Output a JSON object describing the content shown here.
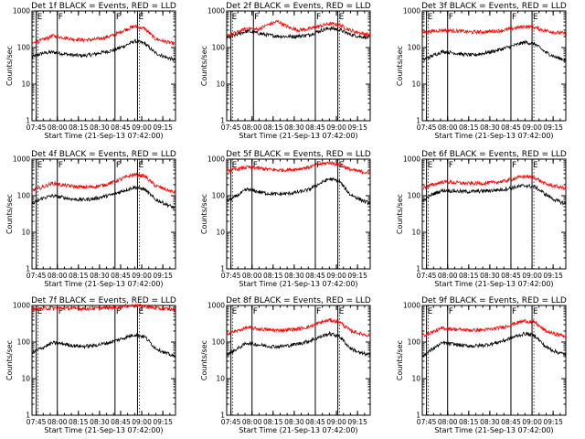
{
  "chart_data": [
    {
      "type": "line",
      "title": "Det 1f BLACK = Events, RED = LLD",
      "ylabel": "Counts/sec",
      "xlabel": "Start Time (21-Sep-13 07:42:00)",
      "x_ticks": [
        "07:45",
        "08:00",
        "08:15",
        "08:30",
        "08:45",
        "09:00",
        "09:15"
      ],
      "y_ticks": [
        "1",
        "10",
        "100",
        "1000"
      ],
      "y_scale": "log",
      "ylim": [
        1,
        1000
      ],
      "series": [
        {
          "color": "#000000",
          "values": [
            55,
            70,
            75,
            68,
            62,
            60,
            65,
            75,
            85,
            110,
            150,
            130,
            72,
            55,
            45
          ]
        },
        {
          "color": "#ff0000",
          "values": [
            130,
            160,
            210,
            190,
            170,
            160,
            165,
            185,
            220,
            300,
            380,
            330,
            175,
            145,
            125
          ]
        }
      ],
      "markers": [
        {
          "label": "E",
          "time": "07:45"
        },
        {
          "label": "F",
          "time": "08:00"
        },
        {
          "label": "F",
          "time": "08:41"
        },
        {
          "label": "E",
          "time": "08:57"
        }
      ]
    },
    {
      "type": "line",
      "title": "Det 2f BLACK = Events, RED = LLD",
      "ylabel": "Counts/sec",
      "xlabel": "Start Time (21-Sep-13 07:42:00)",
      "x_ticks": [
        "07:45",
        "08:00",
        "08:15",
        "08:30",
        "08:45",
        "09:00",
        "09:15"
      ],
      "y_ticks": [
        "1",
        "10",
        "100",
        "1000"
      ],
      "y_scale": "log",
      "ylim": [
        1,
        1000
      ],
      "series": [
        {
          "color": "#000000",
          "values": [
            180,
            230,
            280,
            250,
            220,
            205,
            200,
            205,
            220,
            280,
            340,
            310,
            230,
            200,
            185
          ]
        },
        {
          "color": "#ff0000",
          "values": [
            210,
            260,
            340,
            310,
            420,
            520,
            360,
            300,
            320,
            380,
            450,
            420,
            300,
            250,
            220
          ]
        }
      ],
      "markers": [
        {
          "label": "E",
          "time": "07:45"
        },
        {
          "label": "F",
          "time": "08:01"
        },
        {
          "label": "F",
          "time": "08:45"
        },
        {
          "label": "E",
          "time": "09:01"
        }
      ]
    },
    {
      "type": "line",
      "title": "Det 3f BLACK = Events, RED = LLD",
      "ylabel": "Counts/sec",
      "xlabel": "Start Time (21-Sep-13 07:42:00)",
      "x_ticks": [
        "07:45",
        "08:00",
        "08:15",
        "08:30",
        "08:45",
        "09:00",
        "09:15"
      ],
      "y_ticks": [
        "1",
        "10",
        "100",
        "1000"
      ],
      "y_scale": "log",
      "ylim": [
        1,
        1000
      ],
      "series": [
        {
          "color": "#000000",
          "values": [
            45,
            60,
            78,
            72,
            65,
            62,
            70,
            80,
            95,
            115,
            140,
            125,
            75,
            55,
            45
          ]
        },
        {
          "color": "#ff0000",
          "values": [
            260,
            280,
            300,
            290,
            275,
            265,
            270,
            280,
            300,
            340,
            380,
            350,
            290,
            260,
            240
          ]
        }
      ],
      "markers": [
        {
          "label": "E",
          "time": "07:45"
        },
        {
          "label": "F",
          "time": "08:00"
        },
        {
          "label": "F",
          "time": "08:45"
        },
        {
          "label": "E",
          "time": "09:00"
        }
      ]
    },
    {
      "type": "line",
      "title": "Det 4f BLACK = Events, RED = LLD",
      "ylabel": "Counts/sec",
      "xlabel": "Start Time (21-Sep-13 07:42:00)",
      "x_ticks": [
        "07:45",
        "08:00",
        "08:15",
        "08:30",
        "08:45",
        "09:00",
        "09:15"
      ],
      "y_ticks": [
        "1",
        "10",
        "100",
        "1000"
      ],
      "y_scale": "log",
      "ylim": [
        1,
        1000
      ],
      "series": [
        {
          "color": "#000000",
          "values": [
            60,
            85,
            100,
            90,
            80,
            78,
            82,
            95,
            110,
            140,
            170,
            150,
            80,
            60,
            45
          ]
        },
        {
          "color": "#ff0000",
          "values": [
            140,
            170,
            220,
            195,
            180,
            170,
            175,
            195,
            240,
            310,
            380,
            340,
            190,
            150,
            120
          ]
        }
      ],
      "markers": [
        {
          "label": "E",
          "time": "07:45"
        },
        {
          "label": "F",
          "time": "08:00"
        },
        {
          "label": "F",
          "time": "08:41"
        },
        {
          "label": "E",
          "time": "08:57"
        }
      ]
    },
    {
      "type": "line",
      "title": "Det 5f BLACK = Events, RED = LLD",
      "ylabel": "Counts/sec",
      "xlabel": "Start Time (21-Sep-13 07:42:00)",
      "x_ticks": [
        "07:45",
        "08:00",
        "08:15",
        "08:30",
        "08:45",
        "09:00",
        "09:15"
      ],
      "y_ticks": [
        "1",
        "10",
        "100",
        "1000"
      ],
      "y_scale": "log",
      "ylim": [
        1,
        1000
      ],
      "series": [
        {
          "color": "#000000",
          "values": [
            70,
            100,
            150,
            130,
            115,
            110,
            115,
            125,
            145,
            210,
            290,
            250,
            110,
            80,
            60
          ]
        },
        {
          "color": "#ff0000",
          "values": [
            480,
            530,
            600,
            570,
            530,
            500,
            510,
            540,
            600,
            720,
            800,
            720,
            520,
            460,
            420
          ]
        }
      ],
      "markers": [
        {
          "label": "E",
          "time": "07:45"
        },
        {
          "label": "F",
          "time": "08:00"
        },
        {
          "label": "F",
          "time": "08:45"
        },
        {
          "label": "E",
          "time": "09:01"
        }
      ]
    },
    {
      "type": "line",
      "title": "Det 6f BLACK = Events, RED = LLD",
      "ylabel": "Counts/sec",
      "xlabel": "Start Time (21-Sep-13 07:42:00)",
      "x_ticks": [
        "07:45",
        "08:00",
        "08:15",
        "08:30",
        "08:45",
        "09:00",
        "09:15"
      ],
      "y_ticks": [
        "1",
        "10",
        "100",
        "1000"
      ],
      "y_scale": "log",
      "ylim": [
        1,
        1000
      ],
      "series": [
        {
          "color": "#000000",
          "values": [
            70,
            110,
            140,
            135,
            130,
            130,
            135,
            140,
            150,
            170,
            190,
            175,
            110,
            75,
            60
          ]
        },
        {
          "color": "#ff0000",
          "values": [
            160,
            200,
            240,
            230,
            220,
            215,
            220,
            230,
            250,
            300,
            340,
            310,
            210,
            180,
            160
          ]
        }
      ],
      "markers": [
        {
          "label": "E",
          "time": "07:45"
        },
        {
          "label": "F",
          "time": "08:00"
        },
        {
          "label": "F",
          "time": "08:45"
        },
        {
          "label": "E",
          "time": "09:00"
        }
      ]
    },
    {
      "type": "line",
      "title": "Det 7f BLACK = Events, RED = LLD",
      "ylabel": "Counts/sec",
      "xlabel": "Start Time (21-Sep-13 07:42:00)",
      "x_ticks": [
        "07:45",
        "08:00",
        "08:15",
        "08:30",
        "08:45",
        "09:00",
        "09:15"
      ],
      "y_ticks": [
        "1",
        "10",
        "100",
        "1000"
      ],
      "y_scale": "log",
      "ylim": [
        1,
        1000
      ],
      "series": [
        {
          "color": "#000000",
          "values": [
            50,
            70,
            95,
            90,
            80,
            76,
            80,
            90,
            105,
            130,
            160,
            140,
            70,
            50,
            40
          ]
        },
        {
          "color": "#ff0000",
          "values": [
            780,
            820,
            850,
            840,
            830,
            820,
            830,
            850,
            880,
            950,
            1000,
            960,
            840,
            800,
            780
          ]
        }
      ],
      "markers": [
        {
          "label": "E",
          "time": "07:45"
        },
        {
          "label": "F",
          "time": "08:00"
        },
        {
          "label": "F",
          "time": "08:41"
        },
        {
          "label": "E",
          "time": "08:57"
        }
      ]
    },
    {
      "type": "line",
      "title": "Det 8f BLACK = Events, RED = LLD",
      "ylabel": "Counts/sec",
      "xlabel": "Start Time (21-Sep-13 07:42:00)",
      "x_ticks": [
        "07:45",
        "08:00",
        "08:15",
        "08:30",
        "08:45",
        "09:00",
        "09:15"
      ],
      "y_ticks": [
        "1",
        "10",
        "100",
        "1000"
      ],
      "y_scale": "log",
      "ylim": [
        1,
        1000
      ],
      "series": [
        {
          "color": "#000000",
          "values": [
            45,
            65,
            95,
            85,
            78,
            75,
            80,
            90,
            105,
            135,
            170,
            145,
            70,
            50,
            45
          ]
        },
        {
          "color": "#ff0000",
          "values": [
            170,
            200,
            250,
            230,
            215,
            210,
            215,
            230,
            260,
            330,
            400,
            360,
            210,
            170,
            150
          ]
        }
      ],
      "markers": [
        {
          "label": "E",
          "time": "07:45"
        },
        {
          "label": "F",
          "time": "08:00"
        },
        {
          "label": "F",
          "time": "08:45"
        },
        {
          "label": "E",
          "time": "09:01"
        }
      ]
    },
    {
      "type": "line",
      "title": "Det 9f BLACK = Events, RED = LLD",
      "ylabel": "Counts/sec",
      "xlabel": "Start Time (21-Sep-13 07:42:00)",
      "x_ticks": [
        "07:45",
        "08:00",
        "08:15",
        "08:30",
        "08:45",
        "09:00",
        "09:15"
      ],
      "y_ticks": [
        "1",
        "10",
        "100",
        "1000"
      ],
      "y_scale": "log",
      "ylim": [
        1,
        1000
      ],
      "series": [
        {
          "color": "#000000",
          "values": [
            40,
            65,
            95,
            88,
            80,
            78,
            82,
            92,
            110,
            140,
            170,
            150,
            75,
            55,
            45
          ]
        },
        {
          "color": "#ff0000",
          "values": [
            150,
            190,
            240,
            225,
            215,
            210,
            215,
            230,
            260,
            320,
            380,
            340,
            200,
            165,
            145
          ]
        }
      ],
      "markers": [
        {
          "label": "E",
          "time": "07:45"
        },
        {
          "label": "F",
          "time": "08:00"
        },
        {
          "label": "F",
          "time": "08:45"
        },
        {
          "label": "E",
          "time": "09:00"
        }
      ]
    }
  ]
}
